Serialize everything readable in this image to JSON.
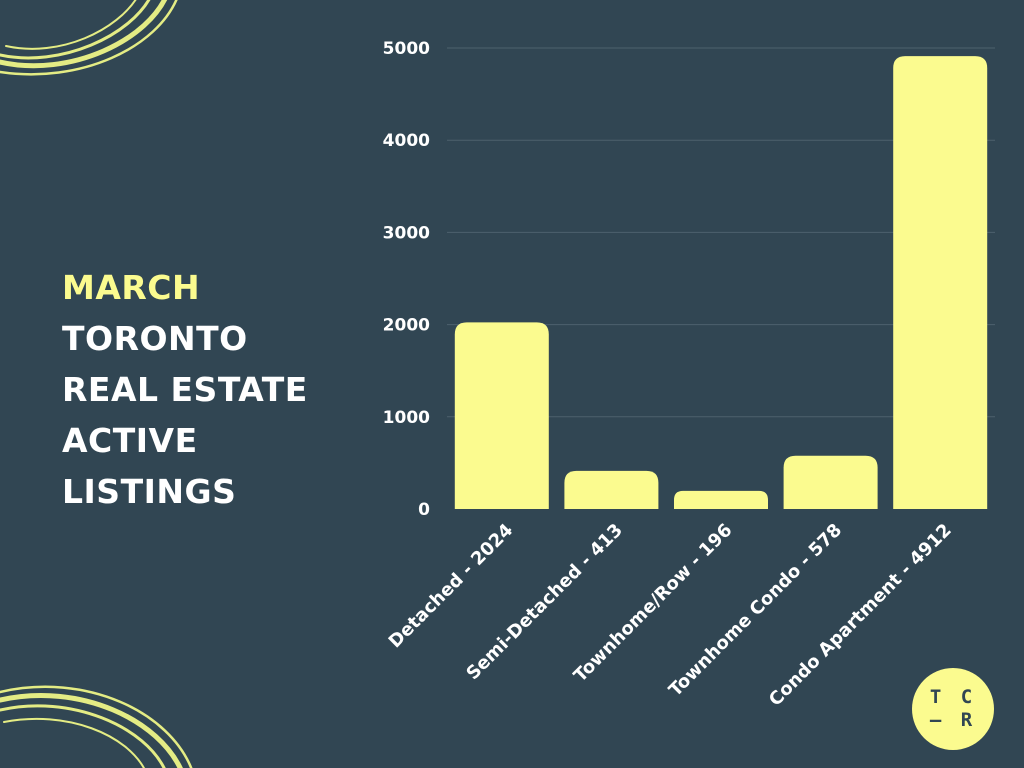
{
  "title": {
    "line1": "MARCH",
    "line2": "TORONTO",
    "line3": "REAL ESTATE",
    "line4": "ACTIVE",
    "line5": "LISTINGS"
  },
  "logo": {
    "line1": "T C",
    "line2": "– R"
  },
  "colors": {
    "background": "#314653",
    "bar": "#fbfb8f",
    "accent": "#fbfb8f",
    "grid": "#4d616d",
    "text": "#ffffff"
  },
  "chart_data": {
    "type": "bar",
    "categories": [
      "Detached - 2024",
      "Semi-Detached - 413",
      "Townhome/Row - 196",
      "Townhome Condo - 578",
      "Condo Apartment - 4912"
    ],
    "values": [
      2024,
      413,
      196,
      578,
      4912
    ],
    "yticks": [
      0,
      1000,
      2000,
      3000,
      4000,
      5000
    ],
    "ylim": [
      0,
      5000
    ],
    "grid": true,
    "xlabel": "",
    "ylabel": ""
  }
}
